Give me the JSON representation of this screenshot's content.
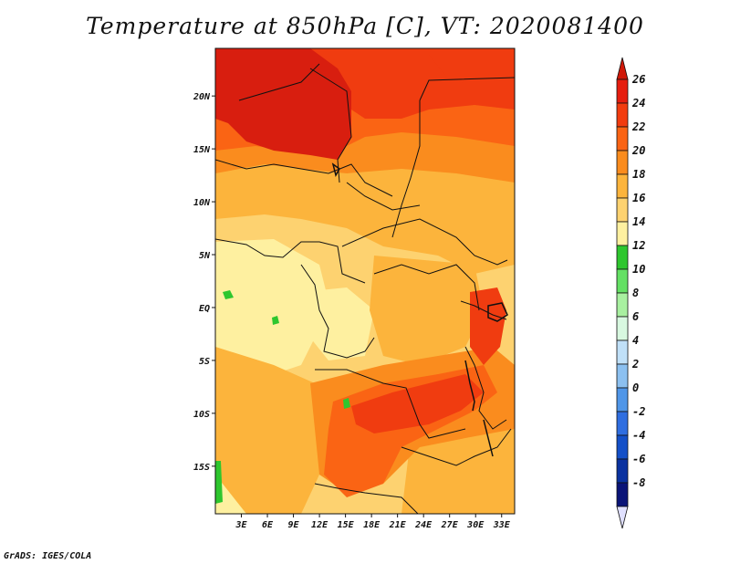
{
  "title": "Temperature at 850hPa [C], VT: 2020081400",
  "credit": "GrADS: IGES/COLA",
  "map": {
    "lat_labels": [
      "20N",
      "15N",
      "10N",
      "5N",
      "EQ",
      "5S",
      "10S",
      "15S"
    ],
    "lat_values": [
      20,
      15,
      10,
      5,
      0,
      -5,
      -10,
      -15
    ],
    "lon_labels": [
      "3E",
      "6E",
      "9E",
      "12E",
      "15E",
      "18E",
      "21E",
      "24E",
      "27E",
      "30E",
      "33E"
    ],
    "lon_values": [
      3,
      6,
      9,
      12,
      15,
      18,
      21,
      24,
      27,
      30,
      33
    ],
    "lon_range": [
      0,
      34.5
    ],
    "lat_range": [
      -19.5,
      24.5
    ]
  },
  "colorbar": {
    "labels": [
      "26",
      "24",
      "22",
      "20",
      "18",
      "16",
      "14",
      "12",
      "10",
      "8",
      "6",
      "4",
      "2",
      "0",
      "-2",
      "-4",
      "-6",
      "-8"
    ],
    "colors": [
      "#e61e0f",
      "#f23c0f",
      "#fa6414",
      "#fa8c1e",
      "#fcb43c",
      "#fdd270",
      "#fef0a0",
      "#2ec62e",
      "#64e064",
      "#a8f0a0",
      "#d8f8e0",
      "#c0e0f8",
      "#8cc0f0",
      "#5096e8",
      "#2f6ee0",
      "#1450c8",
      "#0a32a0",
      "#0a1478"
    ],
    "top_color": "#d01808",
    "bottom_color": "#e0e0ff"
  },
  "colors": {
    "hot": "#d81e0f",
    "warm": "#f03c10",
    "orange": "#fa6414",
    "light_orange": "#fa8c1e",
    "amber": "#fcb43c",
    "yellow": "#fdd270",
    "pale": "#fef0a0",
    "green": "#2ec62e"
  }
}
